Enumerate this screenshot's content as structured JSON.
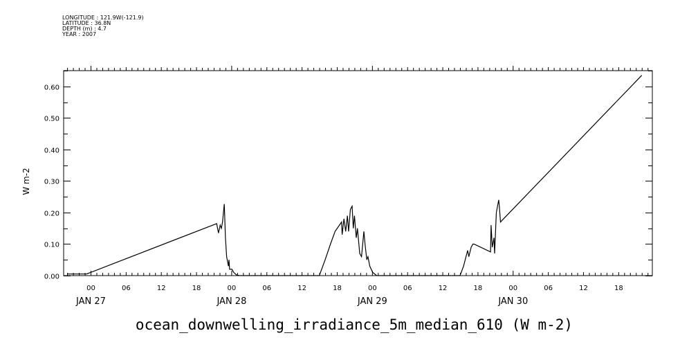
{
  "header": {
    "lines": [
      "LONGITUDE : 121.9W(-121.9)",
      "LATITUDE : 36.8N",
      "DEPTH (m) : 4.7",
      "YEAR : 2007"
    ]
  },
  "chart_data": {
    "type": "line",
    "title": "ocean_downwelling_irradiance_5m_median_610 (W m-2)",
    "xlabel": "",
    "ylabel": "W m-2",
    "x_units": "hours since JAN 27 00:00 2007",
    "xlim": [
      -4.6,
      95.8
    ],
    "ylim": [
      0,
      0.65
    ],
    "yticks": [
      "0.00",
      "0.10",
      "0.20",
      "0.30",
      "0.40",
      "0.50",
      "0.60"
    ],
    "xtick_hour_labels": [
      "00",
      "06",
      "12",
      "18"
    ],
    "day_labels": [
      "JAN 27",
      "JAN 28",
      "JAN 29",
      "JAN 30"
    ],
    "grid": false,
    "series": [
      {
        "name": "ocean_downwelling_irradiance_5m_median_610",
        "points": [
          [
            -4.0,
            0.005
          ],
          [
            -0.7,
            0.005
          ],
          [
            21.5,
            0.165
          ],
          [
            21.8,
            0.135
          ],
          [
            22.1,
            0.16
          ],
          [
            22.3,
            0.15
          ],
          [
            22.5,
            0.17
          ],
          [
            22.8,
            0.227
          ],
          [
            23.0,
            0.12
          ],
          [
            23.2,
            0.06
          ],
          [
            23.5,
            0.03
          ],
          [
            23.6,
            0.05
          ],
          [
            23.7,
            0.02
          ],
          [
            24.1,
            0.02
          ],
          [
            24.4,
            0.01
          ],
          [
            24.9,
            0.002
          ],
          [
            25.4,
            0
          ],
          [
            39.0,
            0
          ],
          [
            40.0,
            0.05
          ],
          [
            40.9,
            0.1
          ],
          [
            41.7,
            0.14
          ],
          [
            42.8,
            0.17
          ],
          [
            42.9,
            0.13
          ],
          [
            43.2,
            0.18
          ],
          [
            43.5,
            0.14
          ],
          [
            43.8,
            0.19
          ],
          [
            44.0,
            0.14
          ],
          [
            44.3,
            0.21
          ],
          [
            44.6,
            0.22
          ],
          [
            44.8,
            0.15
          ],
          [
            45.0,
            0.19
          ],
          [
            45.3,
            0.12
          ],
          [
            45.5,
            0.15
          ],
          [
            45.9,
            0.07
          ],
          [
            46.2,
            0.06
          ],
          [
            46.6,
            0.14
          ],
          [
            46.8,
            0.1
          ],
          [
            47.1,
            0.05
          ],
          [
            47.3,
            0.06
          ],
          [
            47.6,
            0.03
          ],
          [
            48.1,
            0.01
          ],
          [
            48.8,
            0
          ],
          [
            63.0,
            0
          ],
          [
            63.6,
            0.03
          ],
          [
            64.3,
            0.08
          ],
          [
            64.5,
            0.06
          ],
          [
            64.9,
            0.09
          ],
          [
            65.2,
            0.1
          ],
          [
            65.4,
            0.1
          ],
          [
            68.2,
            0.075
          ],
          [
            68.3,
            0.16
          ],
          [
            68.5,
            0.09
          ],
          [
            68.8,
            0.12
          ],
          [
            68.9,
            0.07
          ],
          [
            69.2,
            0.2
          ],
          [
            69.6,
            0.24
          ],
          [
            69.7,
            0.22
          ],
          [
            69.9,
            0.17
          ],
          [
            94.0,
            0.635
          ]
        ]
      }
    ]
  }
}
